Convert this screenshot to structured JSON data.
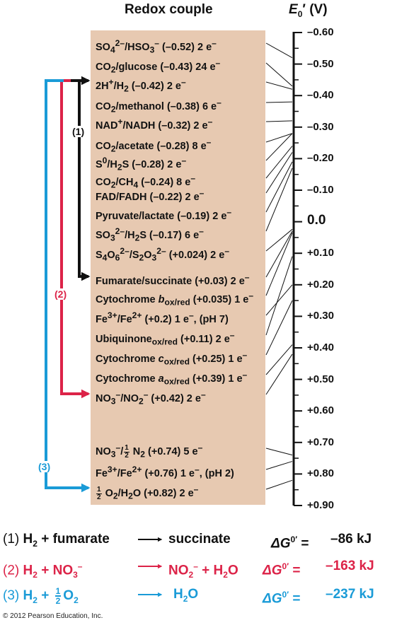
{
  "header": {
    "redox_couple": "Redox couple",
    "e0_label": "E",
    "e0_sub": "0",
    "e0_prime": "′",
    "e0_unit": "(V)"
  },
  "couples": [
    {
      "pre": "SO",
      "sub1": "4",
      "sup1": "2–",
      "mid": "/HSO",
      "sub2": "3",
      "sup2": "–",
      "post": " (–0.52) 2 e",
      "sup3": "–"
    },
    {
      "text": "CO",
      "sub1": "2",
      "post": "/glucose (–0.43) 24 e",
      "sup3": "–"
    },
    {
      "text": "2H",
      "sup1": "+",
      "mid": "/H",
      "sub2": "2",
      "post": " (–0.42) 2 e",
      "sup3": "–"
    },
    {
      "text": "CO",
      "sub1": "2",
      "post": "/methanol (–0.38) 6 e",
      "sup3": "–"
    },
    {
      "text": "NAD",
      "sup1": "+",
      "post": "/NADH (–0.32) 2 e",
      "sup3": "–"
    },
    {
      "text": "CO",
      "sub1": "2",
      "post": "/acetate (–0.28) 8 e",
      "sup3": "–"
    },
    {
      "text": "S",
      "sup1": "0",
      "mid": "/H",
      "sub2": "2",
      "post": "S (–0.28) 2 e",
      "sup3": "–"
    },
    {
      "text": "CO",
      "sub1": "2",
      "mid": "/CH",
      "sub2": "4",
      "post": " (–0.24) 8 e",
      "sup3": "–"
    },
    {
      "text": "FAD/FADH (–0.22) 2 e",
      "sup3": "–"
    },
    {
      "text": "Pyruvate/lactate (–0.19) 2 e",
      "sup3": "–"
    },
    {
      "text": "SO",
      "sub1": "3",
      "sup1": "2–",
      "mid": "/H",
      "sub2": "2",
      "post": "S (–0.17) 6 e",
      "sup3": "–"
    },
    {
      "text": "S",
      "sub1": "4",
      "mid": "O",
      "sub2": "6",
      "sup2": "2–",
      "post": "/S",
      "sub3": "2",
      "post2": "O",
      "sub4": "3",
      "sup4": "2–",
      "post3": " (+0.024) 2 e",
      "sup3": "–"
    },
    {
      "text": "Fumarate/succinate (+0.03) 2 e",
      "sup3": "–"
    },
    {
      "text": "Cytochrome ",
      "ital": "b",
      "sub1": "ox/red",
      "post": " (+0.035) 1 e",
      "sup3": "–"
    },
    {
      "text": "Fe",
      "sup1": "3+",
      "mid": "/Fe",
      "sup2": "2+",
      "post": " (+0.2) 1 e",
      "sup3": "–",
      "post2": ", (pH 7)"
    },
    {
      "text": "Ubiquinone",
      "sub1": "ox/red",
      "post": " (+0.11) 2 e",
      "sup3": "–"
    },
    {
      "text": "Cytochrome ",
      "ital": "c",
      "sub1": "ox/red",
      "post": " (+0.25) 1 e",
      "sup3": "–"
    },
    {
      "text": "Cytochrome ",
      "ital": "a",
      "sub1": "ox/red",
      "post": " (+0.39) 1 e",
      "sup3": "–"
    },
    {
      "text": "NO",
      "sub1": "3",
      "sup1": "–",
      "mid": "/NO",
      "sub2": "2",
      "sup2": "–",
      "post": " (+0.42) 2 e",
      "sup3": "–"
    },
    {
      "text": "NO",
      "sub1": "3",
      "sup1": "–",
      "mid": "/",
      "frac_num": "1",
      "frac_den": "2",
      "post": " N",
      "sub2": "2",
      "post2": " (+0.74) 5 e",
      "sup3": "–"
    },
    {
      "text": "Fe",
      "sup1": "3+",
      "mid": "/Fe",
      "sup2": "2+",
      "post": " (+0.76) 1 e",
      "sup3": "–",
      "post2": ", (pH 2)"
    },
    {
      "frac_num": "1",
      "frac_den": "2",
      "text": " O",
      "sub1": "2",
      "mid": "/H",
      "sub2": "2",
      "post": "O (+0.82) 2 e",
      "sup3": "–"
    }
  ],
  "scale": {
    "ticks": [
      "–0.60",
      "–0.50",
      "–0.40",
      "–0.30",
      "–0.20",
      "–0.10",
      "0.0",
      "+0.10",
      "+0.20",
      "+0.30",
      "+0.40",
      "+0.50",
      "+0.60",
      "+0.70",
      "+0.80",
      "+0.90"
    ],
    "min": -0.6,
    "max": 0.9,
    "mapped_values": [
      -0.52,
      -0.43,
      -0.42,
      -0.38,
      -0.32,
      -0.28,
      -0.28,
      -0.24,
      -0.22,
      -0.19,
      -0.17,
      0.024,
      0.03,
      0.035,
      0.2,
      0.11,
      0.25,
      0.39,
      0.42,
      0.74,
      0.76,
      0.82
    ]
  },
  "paths": {
    "p1_label": "(1)",
    "p2_label": "(2)",
    "p3_label": "(3)",
    "color_1": "#111111",
    "color_2": "#dc2348",
    "color_3": "#1a9bd7"
  },
  "reactions": [
    {
      "label": "(1)",
      "reactant_a": "H",
      "reactant_a_sub": "2",
      "plus": " + ",
      "reactant_b": "fumarate",
      "product": "succinate",
      "dg_symbol": "ΔG",
      "dg_sup": "0′",
      "dg_eq": " = ",
      "dg_value": "–86 kJ"
    },
    {
      "label": "(2)",
      "reactant_a": "H",
      "reactant_a_sub": "2",
      "plus": " + ",
      "reactant_b": "NO",
      "reactant_b_sub": "3",
      "reactant_b_sup": "–",
      "product": "NO",
      "product_sub": "2",
      "product_sup": "–",
      "product_2": " + H",
      "product_2_sub": "2",
      "product_2_post": "O",
      "dg_symbol": "ΔG",
      "dg_sup": "0′",
      "dg_eq": " = ",
      "dg_value": "–163 kJ"
    },
    {
      "label": "(3)",
      "reactant_a": "H",
      "reactant_a_sub": "2",
      "plus": " + ",
      "frac_num": "1",
      "frac_den": "2",
      "reactant_b": "O",
      "reactant_b_sub": "2",
      "product": "H",
      "product_sub": "2",
      "product_post": "O",
      "dg_symbol": "ΔG",
      "dg_sup": "0′",
      "dg_eq": " = ",
      "dg_value": "–237 kJ"
    }
  ],
  "copyright": "© 2012 Pearson Education, Inc."
}
